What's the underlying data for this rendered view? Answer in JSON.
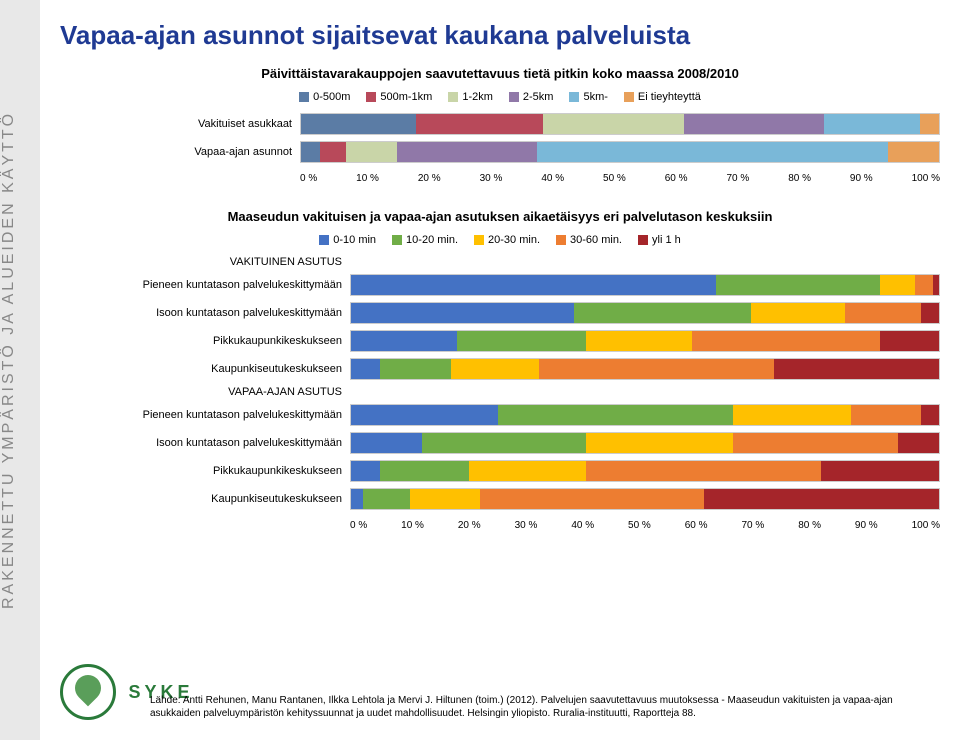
{
  "sidebar_text": "RAKENNETTU YMPÄRISTÖ JA ALUEIDEN KÄYTTÖ",
  "title_color": "#1f3a93",
  "title": "Vapaa-ajan asunnot sijaitsevat kaukana palveluista",
  "chart1": {
    "subtitle": "Päivittäistavarakauppojen saavutettavuus tietä pitkin koko maassa 2008/2010",
    "legend": [
      {
        "label": "0-500m",
        "color": "#5b7ca5"
      },
      {
        "label": "500m-1km",
        "color": "#b8495a"
      },
      {
        "label": "1-2km",
        "color": "#c9d5a8"
      },
      {
        "label": "2-5km",
        "color": "#9078a8"
      },
      {
        "label": "5km-",
        "color": "#7ab8d8"
      },
      {
        "label": "Ei tieyhteyttä",
        "color": "#e8a05a"
      }
    ],
    "rows": [
      {
        "label": "Vakituiset asukkaat",
        "segs": [
          18,
          20,
          22,
          22,
          15,
          3
        ]
      },
      {
        "label": "Vapaa-ajan asunnot",
        "segs": [
          3,
          4,
          8,
          22,
          55,
          8
        ]
      }
    ],
    "axis": [
      "0 %",
      "10 %",
      "20 %",
      "30 %",
      "40 %",
      "50 %",
      "60 %",
      "70 %",
      "80 %",
      "90 %",
      "100 %"
    ]
  },
  "chart2": {
    "subtitle": "Maaseudun vakituisen ja vapaa-ajan asutuksen aikaetäisyys eri palvelutason keskuksiin",
    "legend": [
      {
        "label": "0-10 min",
        "color": "#4472c4"
      },
      {
        "label": "10-20 min.",
        "color": "#70ad47"
      },
      {
        "label": "20-30 min.",
        "color": "#ffc000"
      },
      {
        "label": "30-60 min.",
        "color": "#ed7d31"
      },
      {
        "label": "yli 1 h",
        "color": "#a5252a"
      }
    ],
    "rows": [
      {
        "label": "VAKITUINEN ASUTUS",
        "segs": null
      },
      {
        "label": "Pieneen kuntatason palvelukeskittymään",
        "segs": [
          62,
          28,
          6,
          3,
          1
        ]
      },
      {
        "label": "Isoon kuntatason palvelukeskittymään",
        "segs": [
          38,
          30,
          16,
          13,
          3
        ]
      },
      {
        "label": "Pikkukaupunkikeskukseen",
        "segs": [
          18,
          22,
          18,
          32,
          10
        ]
      },
      {
        "label": "Kaupunkiseutukeskukseen",
        "segs": [
          5,
          12,
          15,
          40,
          28
        ]
      },
      {
        "label": "VAPAA-AJAN ASUTUS",
        "segs": null
      },
      {
        "label": "Pieneen kuntatason palvelukeskittymään",
        "segs": [
          25,
          40,
          20,
          12,
          3
        ]
      },
      {
        "label": "Isoon kuntatason palvelukeskittymään",
        "segs": [
          12,
          28,
          25,
          28,
          7
        ]
      },
      {
        "label": "Pikkukaupunkikeskukseen",
        "segs": [
          5,
          15,
          20,
          40,
          20
        ]
      },
      {
        "label": "Kaupunkiseutukeskukseen",
        "segs": [
          2,
          8,
          12,
          38,
          40
        ]
      }
    ],
    "axis": [
      "0 %",
      "10 %",
      "20 %",
      "30 %",
      "40 %",
      "50 %",
      "60 %",
      "70 %",
      "80 %",
      "90 %",
      "100 %"
    ]
  },
  "logo_text": "SYKE",
  "source": "Lähde: Antti Rehunen, Manu Rantanen, Ilkka Lehtola ja Mervi J. Hiltunen (toim.) (2012). Palvelujen saavutettavuus muutoksessa - Maaseudun vakituisten ja vapaa-ajan asukkaiden palveluympäristön kehityssuunnat ja uudet mahdollisuudet. Helsingin yliopisto. Ruralia-instituutti, Raportteja 88."
}
